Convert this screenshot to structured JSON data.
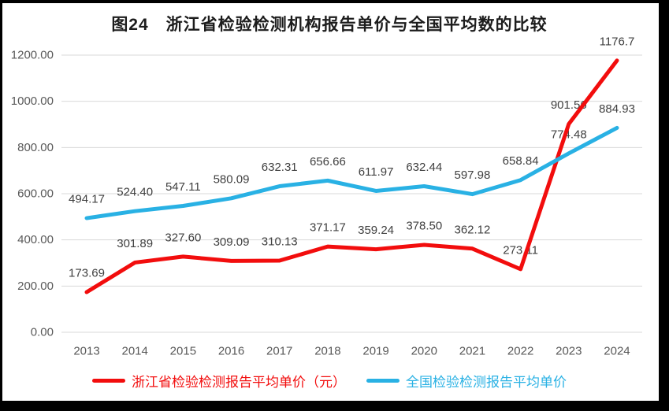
{
  "chart_data": {
    "type": "line",
    "title": "图24　浙江省检验检测机构报告单价与全国平均数的比较",
    "categories": [
      "2013",
      "2014",
      "2015",
      "2016",
      "2017",
      "2018",
      "2019",
      "2020",
      "2021",
      "2022",
      "2023",
      "2024"
    ],
    "series": [
      {
        "name": "浙江省检验检测报告平均单价（元）",
        "color": "#f20d0d",
        "values": [
          173.69,
          301.89,
          327.6,
          309.09,
          310.13,
          371.17,
          359.24,
          378.5,
          362.12,
          273.11,
          901.56,
          1176.7
        ],
        "labels": [
          "173.69",
          "301.89",
          "327.60",
          "309.09",
          "310.13",
          "371.17",
          "359.24",
          "378.50",
          "362.12",
          "273.11",
          "901.56",
          "1176.7"
        ]
      },
      {
        "name": "全国检验检测报告平均单价",
        "color": "#29b1e4",
        "values": [
          494.17,
          524.4,
          547.11,
          580.09,
          632.31,
          656.66,
          611.97,
          632.44,
          597.98,
          658.84,
          774.48,
          884.93
        ],
        "labels": [
          "494.17",
          "524.40",
          "547.11",
          "580.09",
          "632.31",
          "656.66",
          "611.97",
          "632.44",
          "597.98",
          "658.84",
          "774.48",
          "884.93"
        ]
      }
    ],
    "y_ticks": [
      "1200.00",
      "1000.00",
      "800.00",
      "600.00",
      "400.00",
      "200.00",
      "0.00"
    ],
    "ylim": [
      0,
      1200
    ],
    "grid": true,
    "legend_position": "bottom",
    "grid_color": "#d9d9d9",
    "axis_label_color": "#595959",
    "data_label_color": "#404040",
    "frame_color": "#000000"
  }
}
